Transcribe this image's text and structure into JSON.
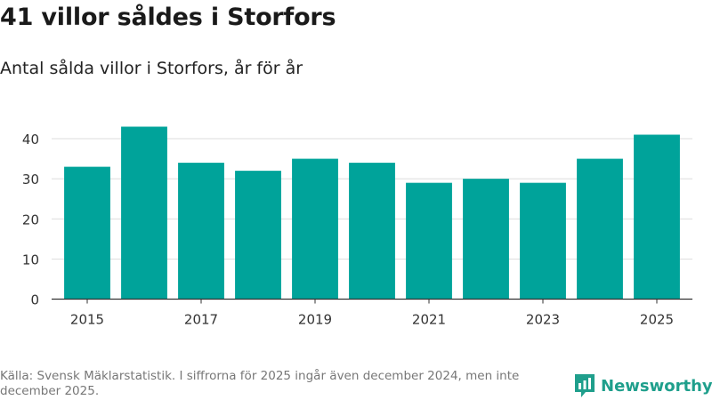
{
  "title": "41 villor såldes i Storfors",
  "subtitle": "Antal sålda villor i Storfors, år för år",
  "source": "Källa: Svensk Mäklarstatistik. I siffrorna för 2025 ingår även december 2024, men inte december 2025.",
  "brand": {
    "name": "Newsworthy",
    "icon": "newsworthy-logo-icon"
  },
  "colors": {
    "bar": "#00a39a",
    "grid": "#dddddd",
    "axis": "#333333",
    "brand": "#1f9f8c"
  },
  "chart_data": {
    "type": "bar",
    "title": "41 villor såldes i Storfors",
    "subtitle": "Antal sålda villor i Storfors, år för år",
    "xlabel": "",
    "ylabel": "",
    "categories": [
      "2015",
      "2016",
      "2017",
      "2018",
      "2019",
      "2020",
      "2021",
      "2022",
      "2023",
      "2024",
      "2025"
    ],
    "values": [
      33,
      43,
      34,
      32,
      35,
      34,
      29,
      30,
      29,
      35,
      41
    ],
    "x_tick_labels": [
      "2015",
      "2017",
      "2019",
      "2021",
      "2023",
      "2025"
    ],
    "y_ticks": [
      0,
      10,
      20,
      30,
      40
    ],
    "ylim": [
      0,
      43
    ],
    "grid": true,
    "legend": "none"
  }
}
